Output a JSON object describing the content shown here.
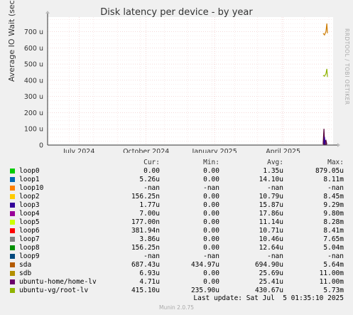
{
  "chart_data": {
    "type": "area",
    "title": "Disk latency per device - by year",
    "ylabel": "Average IO Wait (seconds)",
    "ylim": [
      0,
      790
    ],
    "y_ticks": [
      "0",
      "100 u",
      "200 u",
      "300 u",
      "400 u",
      "500 u",
      "600 u",
      "700 u"
    ],
    "y_tick_values": [
      0,
      100,
      200,
      300,
      400,
      500,
      600,
      700
    ],
    "x_ticks": [
      "July 2024",
      "October 2024",
      "January 2025",
      "April 2025"
    ],
    "grid": true,
    "series": [
      {
        "name": "sda",
        "color": "#cc7a00",
        "values": [
          [
            0.965,
            690
          ],
          [
            0.97,
            680
          ],
          [
            0.975,
            700
          ],
          [
            0.978,
            750
          ],
          [
            0.98,
            690
          ]
        ]
      },
      {
        "name": "ubuntu-vg/root-lv",
        "color": "#8fb300",
        "values": [
          [
            0.965,
            430
          ],
          [
            0.97,
            425
          ],
          [
            0.975,
            440
          ],
          [
            0.978,
            470
          ],
          [
            0.98,
            420
          ]
        ]
      },
      {
        "name": "ubuntu-home/home-lv",
        "color": "#55003b",
        "values": [
          [
            0.965,
            5
          ],
          [
            0.968,
            100
          ],
          [
            0.97,
            20
          ],
          [
            0.975,
            30
          ],
          [
            0.978,
            5
          ]
        ]
      },
      {
        "name": "loop3",
        "color": "#330099",
        "values": [
          [
            0.968,
            10
          ],
          [
            0.97,
            50
          ],
          [
            0.972,
            10
          ]
        ]
      }
    ]
  },
  "rrdtool": "RRDTOOL / TOBI OETIKER",
  "legend_header": {
    "cur": "Cur:",
    "min": "Min:",
    "avg": "Avg:",
    "max": "Max:"
  },
  "legend": [
    {
      "name": "loop0",
      "color": "#00cc00",
      "cur": "0.00",
      "min": "0.00",
      "avg": "1.35u",
      "max": "879.05u"
    },
    {
      "name": "loop1",
      "color": "#0066b3",
      "cur": "5.26u",
      "min": "0.00",
      "avg": "14.10u",
      "max": "8.11m"
    },
    {
      "name": "loop10",
      "color": "#ff8000",
      "cur": "-nan",
      "min": "-nan",
      "avg": "-nan",
      "max": "-nan"
    },
    {
      "name": "loop2",
      "color": "#ffcc00",
      "cur": "156.25n",
      "min": "0.00",
      "avg": "10.79u",
      "max": "8.45m"
    },
    {
      "name": "loop3",
      "color": "#330099",
      "cur": "1.77u",
      "min": "0.00",
      "avg": "15.87u",
      "max": "9.29m"
    },
    {
      "name": "loop4",
      "color": "#990099",
      "cur": "7.00u",
      "min": "0.00",
      "avg": "17.86u",
      "max": "9.80m"
    },
    {
      "name": "loop5",
      "color": "#ccff00",
      "cur": "177.00n",
      "min": "0.00",
      "avg": "11.14u",
      "max": "8.28m"
    },
    {
      "name": "loop6",
      "color": "#ff0000",
      "cur": "381.94n",
      "min": "0.00",
      "avg": "10.71u",
      "max": "8.41m"
    },
    {
      "name": "loop7",
      "color": "#808080",
      "cur": "3.86u",
      "min": "0.00",
      "avg": "10.46u",
      "max": "7.65m"
    },
    {
      "name": "loop8",
      "color": "#008f00",
      "cur": "156.25n",
      "min": "0.00",
      "avg": "12.64u",
      "max": "5.04m"
    },
    {
      "name": "loop9",
      "color": "#00487d",
      "cur": "-nan",
      "min": "-nan",
      "avg": "-nan",
      "max": "-nan"
    },
    {
      "name": "sda",
      "color": "#b35a00",
      "cur": "687.43u",
      "min": "434.97u",
      "avg": "694.90u",
      "max": "5.64m"
    },
    {
      "name": "sdb",
      "color": "#b38f00",
      "cur": "6.93u",
      "min": "0.00",
      "avg": "25.69u",
      "max": "11.00m"
    },
    {
      "name": "ubuntu-home/home-lv",
      "color": "#6b006b",
      "cur": "4.71u",
      "min": "0.00",
      "avg": "25.41u",
      "max": "11.00m"
    },
    {
      "name": "ubuntu-vg/root-lv",
      "color": "#8fb300",
      "cur": "415.10u",
      "min": "235.90u",
      "avg": "430.67u",
      "max": "5.73m"
    }
  ],
  "last_update": "Last update: Sat Jul  5 01:35:10 2025",
  "munin_version": "Munin 2.0.75"
}
